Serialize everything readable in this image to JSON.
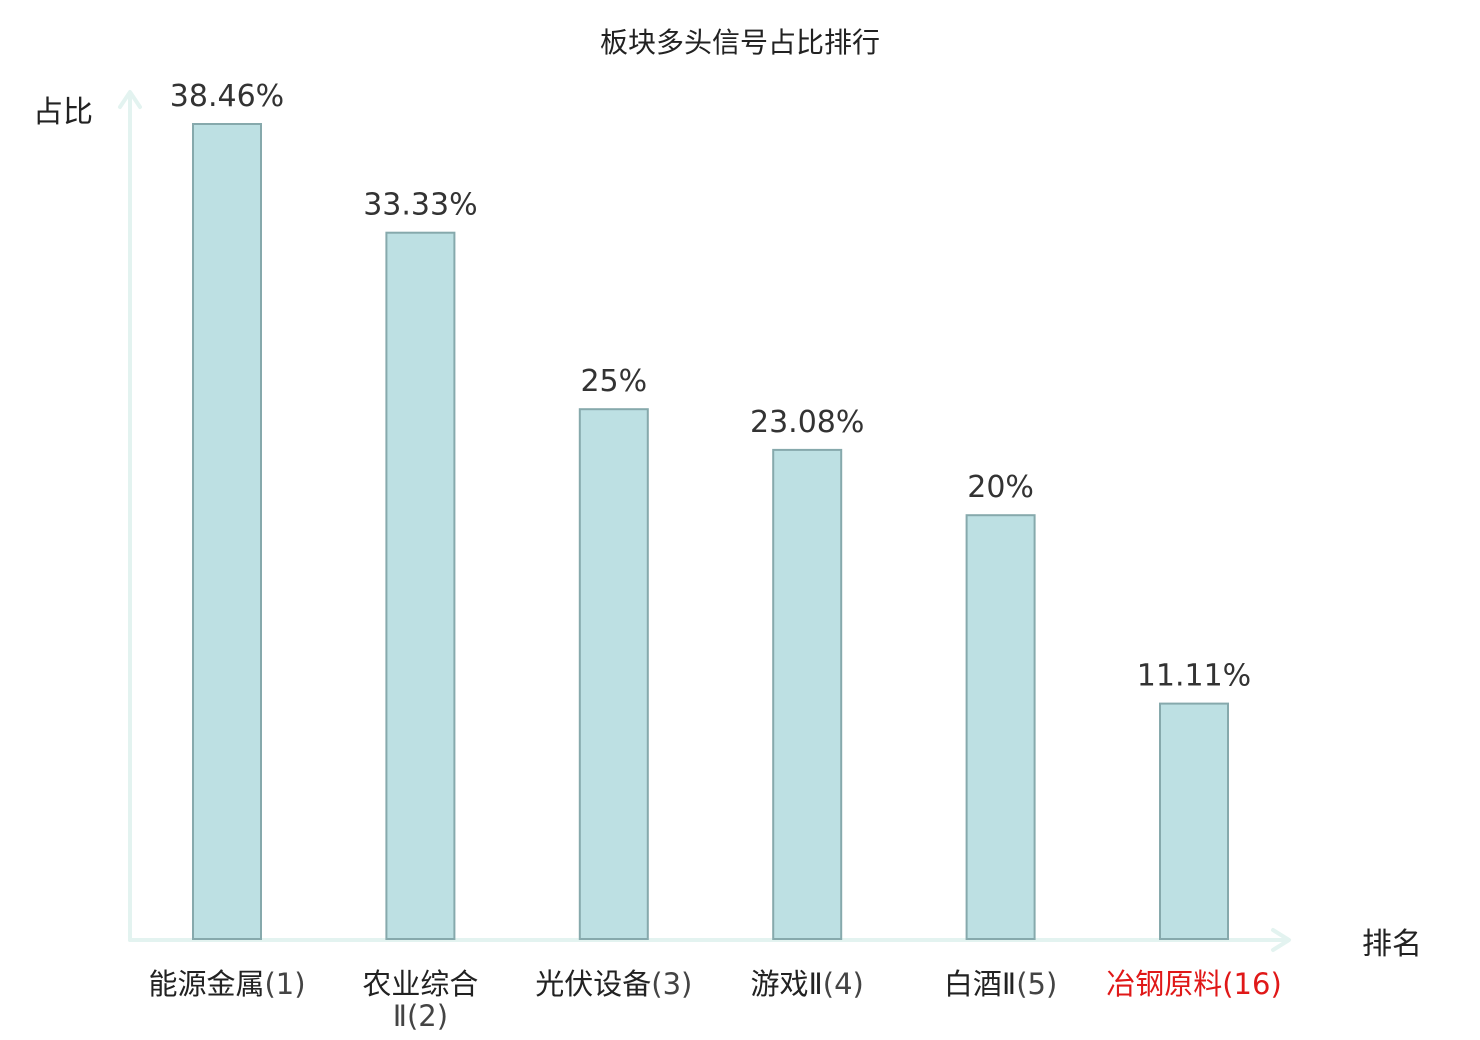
{
  "chart_data": {
    "type": "bar",
    "title": "板块多头信号占比排行",
    "xlabel": "排名",
    "ylabel": "占比",
    "categories": [
      {
        "name": "能源金属",
        "rank": "(1)",
        "highlight": false
      },
      {
        "name": "农业综合Ⅱ",
        "rank": "(2)",
        "highlight": false
      },
      {
        "name": "光伏设备",
        "rank": "(3)",
        "highlight": false
      },
      {
        "name": "游戏Ⅱ",
        "rank": "(4)",
        "highlight": false
      },
      {
        "name": "白酒Ⅱ",
        "rank": "(5)",
        "highlight": false
      },
      {
        "name": "冶钢原料",
        "rank": "(16)",
        "highlight": true
      }
    ],
    "values": [
      38.46,
      33.33,
      25,
      23.08,
      20,
      11.11
    ],
    "value_labels": [
      "38.46%",
      "33.33%",
      "25%",
      "23.08%",
      "20%",
      "11.11%"
    ],
    "ylim": [
      0,
      40
    ],
    "grid": false,
    "colors": {
      "bar_fill": "#bde0e3",
      "bar_stroke": "#86a9ac",
      "axis": "#e3f3f0",
      "label": "#222222",
      "highlight": "#e01818"
    }
  }
}
